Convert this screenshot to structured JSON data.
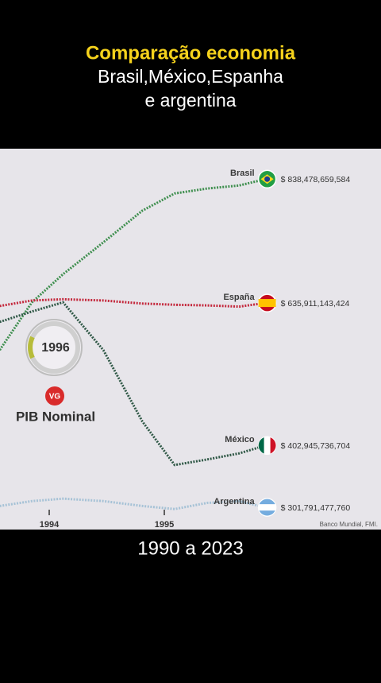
{
  "header": {
    "title": "Comparação economia",
    "subtitle_1": "Brasil,México,Espanha",
    "subtitle_2": "e argentina"
  },
  "caption": "1990 a 2023",
  "chart_data": {
    "type": "line",
    "year_badge": "1996",
    "logo": "VG",
    "label": "PIB Nominal",
    "source": "Banco Mundial, FMI.",
    "x": [
      1993.57,
      1993.85,
      1994.12,
      1994.47,
      1994.81,
      1995.09,
      1995.37,
      1995.65,
      1995.88
    ],
    "xlim": [
      1993.5724,
      1996.8827
    ],
    "xticks": [
      1994,
      1995
    ],
    "ylim": [
      265500000000,
      888200000000
    ],
    "series": [
      {
        "name": "Brasil",
        "color": "#3f8f4f",
        "values": [
          559000000000,
          637000000000,
          683000000000,
          735000000000,
          787000000000,
          815000000000,
          823000000000,
          828000000000,
          838478659584
        ],
        "value_labels": [
          null,
          null,
          null,
          null,
          null,
          null,
          null,
          null,
          "$ 838,478,659,584"
        ]
      },
      {
        "name": "España",
        "color": "#c4283c",
        "values": [
          631000000000,
          640000000000,
          642000000000,
          640000000000,
          635000000000,
          633000000000,
          632000000000,
          630000000000,
          635911143424
        ],
        "value_labels": [
          null,
          null,
          null,
          null,
          null,
          null,
          null,
          null,
          "$ 635,911,143,424"
        ]
      },
      {
        "name": "México",
        "color": "#2f5846",
        "values": [
          605000000000,
          622000000000,
          637000000000,
          559000000000,
          442000000000,
          371000000000,
          380000000000,
          390000000000,
          402945736704
        ],
        "value_labels": [
          null,
          null,
          null,
          null,
          null,
          null,
          null,
          null,
          "$ 402,945,736,704"
        ]
      },
      {
        "name": "Argentina",
        "color": "#a6c2d6",
        "values": [
          304000000000,
          312000000000,
          316000000000,
          312000000000,
          304000000000,
          299000000000,
          309000000000,
          312000000000,
          301791477760
        ],
        "value_labels": [
          null,
          null,
          null,
          null,
          null,
          null,
          null,
          null,
          "$ 301,791,477,760"
        ]
      }
    ]
  }
}
